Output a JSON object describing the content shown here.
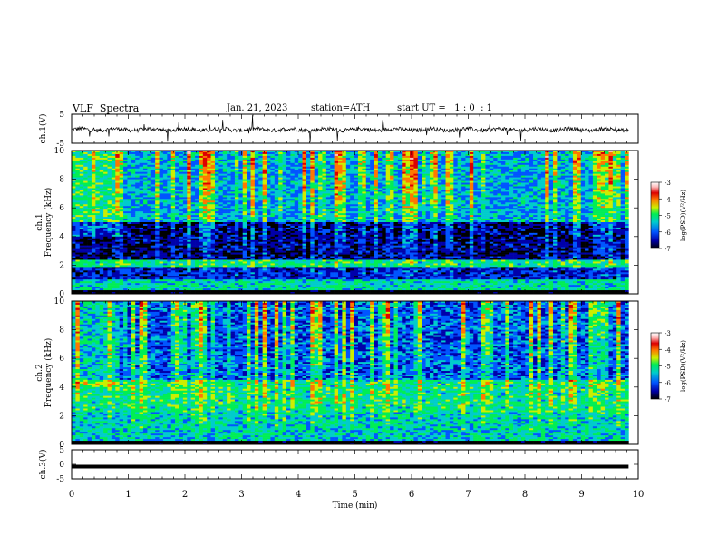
{
  "header": {
    "title": "VLF  Spectra",
    "date": "Jan. 21, 2023",
    "station": "station=ATH",
    "start_ut": "start UT =   1 : 0  : 1"
  },
  "colors": {
    "background": "#ffffff",
    "axis": "#000000",
    "waveform": "#000000",
    "colormap": [
      "#000000",
      "#0000aa",
      "#0055ff",
      "#00cccc",
      "#00ee55",
      "#ccee00",
      "#ff7700",
      "#dd0000",
      "#ffbbbb",
      "#ffffff"
    ]
  },
  "chart_data": [
    {
      "type": "line",
      "id": "ch1-waveform",
      "ylabel": "ch.1(V)",
      "ylim": [
        -5,
        5
      ],
      "yticks": [
        "5",
        "-5"
      ],
      "xlim": [
        0,
        10
      ],
      "baseline_v": -0.3,
      "description_of_values": "waveform noise around ~0 V with spikes"
    },
    {
      "type": "heatmap",
      "id": "ch1-spectrogram",
      "ylabel_lines": [
        "ch.1",
        "Frequency (kHz)"
      ],
      "ylim": [
        0,
        10
      ],
      "yticks": [
        "0",
        "2",
        "4",
        "6",
        "8",
        "10"
      ],
      "xlim": [
        0,
        9.83
      ],
      "colorbar": {
        "label": "log(PSD)(V²/Hz)",
        "range": [
          -7,
          -3
        ],
        "ticks": [
          "-3",
          "-4",
          "-5",
          "-6",
          "-7"
        ]
      },
      "bands": [
        {
          "f": [
            0.0,
            0.3
          ],
          "level": -7.0
        },
        {
          "f": [
            0.3,
            1.0
          ],
          "level": -5.3
        },
        {
          "f": [
            1.0,
            1.9
          ],
          "level": -6.2
        },
        {
          "f": [
            1.9,
            2.4
          ],
          "level": -5.2
        },
        {
          "f": [
            2.4,
            5.0
          ],
          "level": -6.5
        },
        {
          "f": [
            5.0,
            10.0
          ],
          "level": -5.6
        }
      ]
    },
    {
      "type": "heatmap",
      "id": "ch2-spectrogram",
      "ylabel_lines": [
        "ch.2",
        "Frequency (kHz)"
      ],
      "ylim": [
        0,
        10
      ],
      "yticks": [
        "0",
        "2",
        "4",
        "6",
        "8",
        "10"
      ],
      "xlim": [
        0,
        9.83
      ],
      "colorbar": {
        "label": "log(PSD)(V²/Hz)",
        "range": [
          -7,
          -3
        ],
        "ticks": [
          "-3",
          "-4",
          "-5",
          "-6",
          "-7"
        ]
      },
      "bands": [
        {
          "f": [
            0.0,
            0.3
          ],
          "level": -7.0
        },
        {
          "f": [
            0.3,
            2.2
          ],
          "level": -5.4
        },
        {
          "f": [
            2.2,
            4.5
          ],
          "level": -5.2
        },
        {
          "f": [
            4.5,
            10.0
          ],
          "level": -5.9
        }
      ]
    },
    {
      "type": "line",
      "id": "ch3-waveform",
      "ylabel": "ch.3(V)",
      "ylim": [
        -5,
        5
      ],
      "yticks": [
        "5",
        "0",
        "-5"
      ],
      "xlim": [
        0,
        9.83
      ],
      "value_v": -0.8,
      "xlabel": "Time  (min)",
      "xticks": [
        "0",
        "1",
        "2",
        "3",
        "4",
        "5",
        "6",
        "7",
        "8",
        "9",
        "10"
      ]
    }
  ]
}
